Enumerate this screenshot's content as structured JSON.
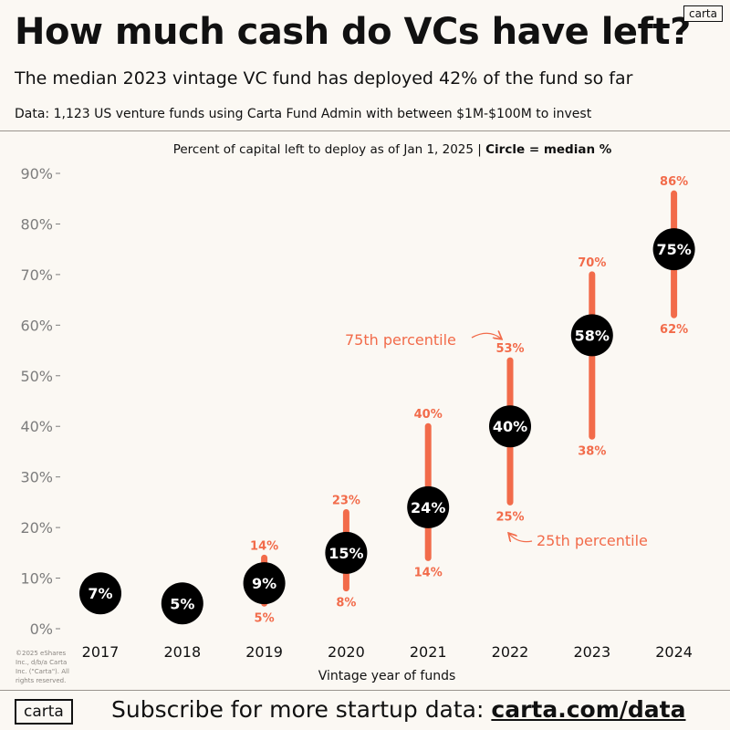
{
  "header": {
    "title": "How much cash do VCs have left?",
    "subtitle": "The median 2023 vintage VC fund  has deployed 42% of the fund so far",
    "source": "Data: 1,123 US venture funds using Carta Fund Admin with between $1M-$100M to invest",
    "logo_text": "carta"
  },
  "caption": {
    "main": "Percent of capital left to deploy as of Jan 1, 2025",
    "separator": "|",
    "bold": "Circle = median %"
  },
  "chart_data": {
    "type": "range",
    "xlabel": "Vintage year of funds",
    "ylim": [
      0,
      90
    ],
    "yticks": [
      "0%",
      "10%",
      "20%",
      "30%",
      "40%",
      "50%",
      "60%",
      "70%",
      "80%",
      "90%"
    ],
    "categories": [
      "2017",
      "2018",
      "2019",
      "2020",
      "2021",
      "2022",
      "2023",
      "2024"
    ],
    "median": [
      7,
      5,
      9,
      15,
      24,
      40,
      58,
      75
    ],
    "p25": [
      null,
      null,
      5,
      8,
      14,
      25,
      38,
      62
    ],
    "p75": [
      null,
      null,
      14,
      23,
      40,
      53,
      70,
      86
    ],
    "median_labels": [
      "7%",
      "5%",
      "9%",
      "15%",
      "24%",
      "40%",
      "58%",
      "75%"
    ],
    "p25_labels": [
      "",
      "",
      "5%",
      "8%",
      "14%",
      "25%",
      "38%",
      "62%"
    ],
    "p75_labels": [
      "",
      "",
      "14%",
      "23%",
      "40%",
      "53%",
      "70%",
      "86%"
    ],
    "annotations": {
      "p75": "75th percentile",
      "p25": "25th percentile"
    },
    "colors": {
      "range": "#f26b4a",
      "median": "#000000",
      "median_text": "#ffffff",
      "axis": "#7d7d7d"
    }
  },
  "copyright": "©2025 eShares Inc., d/b/a Carta Inc. (\"Carta\"). All rights reserved.",
  "footer": {
    "logo_text": "carta",
    "text": "Subscribe for more startup data: ",
    "link": "carta.com/data"
  }
}
